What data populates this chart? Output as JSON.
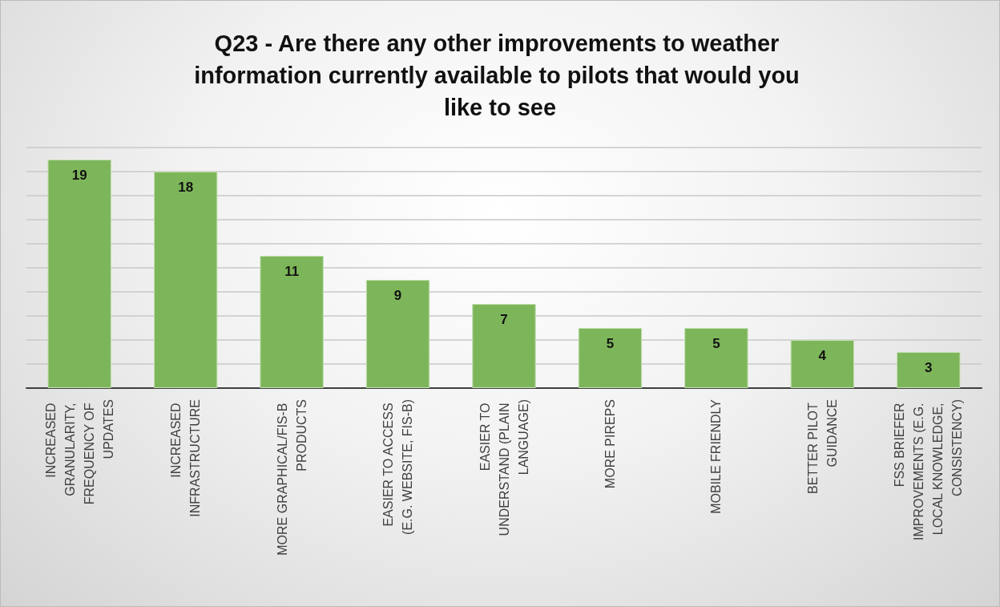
{
  "chart_data": {
    "type": "bar",
    "title": "Q23 - Are there any other improvements to weather information currently available to pilots that would you like to see",
    "categories": [
      "INCREASED GRANULARITY, FREQUENCY OF UPDATES",
      "INCREASED INFRASTRUCTURE",
      "MORE GRAPHICAL/FIS-B PRODUCTS",
      "EASIER TO ACCESS (E.G. WEBSITE, FIS-B)",
      "EASIER TO UNDERSTAND (PLAIN LANGUAGE)",
      "MORE PIREPS",
      "MOBILE FRIENDLY",
      "BETTER PILOT GUIDANCE",
      "FSS BRIEFER IMPROVEMENTS (E.G. LOCAL KNOWLEDGE, CONSISTENCY)"
    ],
    "values": [
      19,
      18,
      11,
      9,
      7,
      5,
      5,
      4,
      3
    ],
    "color": "#7db65a",
    "ylim": [
      0,
      20
    ],
    "yticks": [
      {
        "value": 0,
        "label": null
      },
      {
        "value": 2,
        "label": null
      },
      {
        "value": 4,
        "label": null
      },
      {
        "value": 6,
        "label": null
      },
      {
        "value": 8,
        "label": null
      },
      {
        "value": 10,
        "label": null
      },
      {
        "value": 12,
        "label": null
      },
      {
        "value": 14,
        "label": null
      },
      {
        "value": 16,
        "label": null
      },
      {
        "value": 18,
        "label": null
      },
      {
        "value": 20,
        "label": null
      }
    ],
    "grid": "y",
    "data_labels": true,
    "tick_labels": "x"
  }
}
